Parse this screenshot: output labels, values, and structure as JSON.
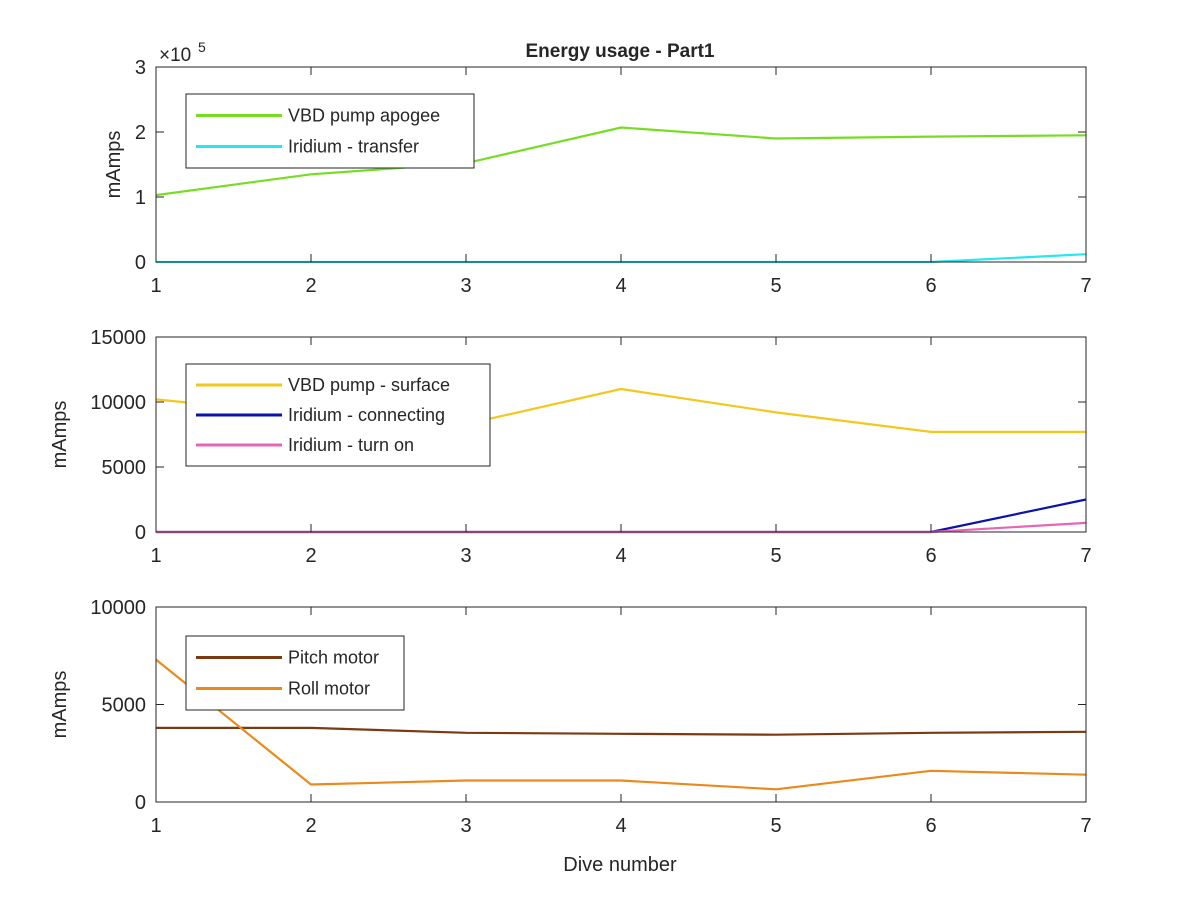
{
  "figure": {
    "title": "Energy usage - Part1",
    "xlabel": "Dive number"
  },
  "chart_data": [
    {
      "type": "line",
      "title": "Energy usage - Part1",
      "xlabel": "",
      "ylabel": "mAmps",
      "exponent_label": "×10",
      "exponent_power": "5",
      "x": [
        1,
        2,
        3,
        4,
        5,
        6,
        7
      ],
      "xlim": [
        1,
        7
      ],
      "ylim": [
        0,
        3
      ],
      "xticks": [
        "1",
        "2",
        "3",
        "4",
        "5",
        "6",
        "7"
      ],
      "yticks": [
        "0",
        "1",
        "2",
        "3"
      ],
      "legend_position": "top-left",
      "series": [
        {
          "name": "VBD pump apogee",
          "color": "#77dd22",
          "values": [
            1.03,
            1.35,
            1.52,
            2.07,
            1.9,
            1.93,
            1.95
          ]
        },
        {
          "name": "Iridium - transfer",
          "color": "#22e8f0",
          "values": [
            0,
            0,
            0,
            0,
            0,
            0,
            0.12
          ]
        }
      ],
      "y_scale": "values multiplied by 10^5"
    },
    {
      "type": "line",
      "title": "",
      "xlabel": "",
      "ylabel": "mAmps",
      "x": [
        1,
        2,
        3,
        4,
        5,
        6,
        7
      ],
      "xlim": [
        1,
        7
      ],
      "ylim": [
        0,
        15000
      ],
      "xticks": [
        "1",
        "2",
        "3",
        "4",
        "5",
        "6",
        "7"
      ],
      "yticks": [
        "0",
        "5000",
        "10000",
        "15000"
      ],
      "legend_position": "top-left",
      "series": [
        {
          "name": "VBD pump - surface",
          "color": "#f2c81e",
          "values": [
            10200,
            9000,
            8300,
            11000,
            9200,
            7700,
            7700
          ]
        },
        {
          "name": "Iridium - connecting",
          "color": "#0a14a8",
          "values": [
            0,
            0,
            0,
            0,
            0,
            0,
            2500
          ]
        },
        {
          "name": "Iridium - turn on",
          "color": "#e566b8",
          "values": [
            0,
            0,
            0,
            0,
            0,
            0,
            700
          ]
        }
      ]
    },
    {
      "type": "line",
      "title": "",
      "xlabel": "Dive number",
      "ylabel": "mAmps",
      "x": [
        1,
        2,
        3,
        4,
        5,
        6,
        7
      ],
      "xlim": [
        1,
        7
      ],
      "ylim": [
        0,
        10000
      ],
      "xticks": [
        "1",
        "2",
        "3",
        "4",
        "5",
        "6",
        "7"
      ],
      "yticks": [
        "0",
        "5000",
        "10000"
      ],
      "legend_position": "top-left",
      "series": [
        {
          "name": "Pitch motor",
          "color": "#7a3a12",
          "values": [
            3800,
            3800,
            3550,
            3500,
            3450,
            3550,
            3600
          ]
        },
        {
          "name": "Roll motor",
          "color": "#ea8a1c",
          "values": [
            7300,
            900,
            1100,
            1100,
            650,
            1600,
            1400
          ]
        }
      ]
    }
  ]
}
